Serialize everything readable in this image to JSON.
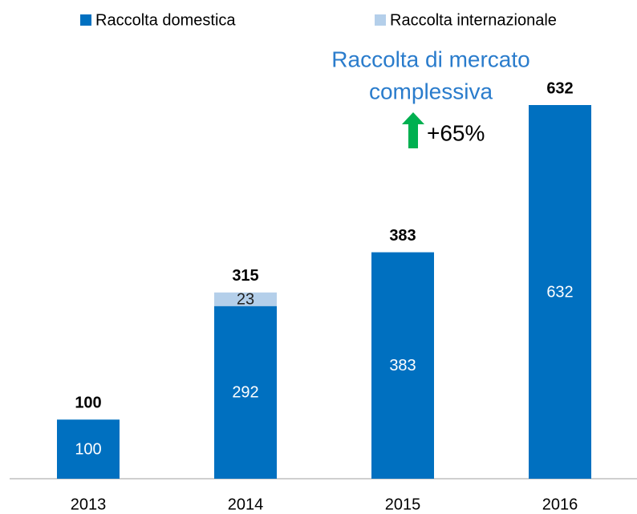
{
  "chart_data": {
    "type": "stacked_bar",
    "categories": [
      "2013",
      "2014",
      "2015",
      "2016"
    ],
    "series": [
      {
        "name": "Raccolta domestica",
        "color": "#0070c0",
        "values": [
          100,
          292,
          383,
          632
        ]
      },
      {
        "name": "Raccolta internazionale",
        "color": "#b4cfea",
        "values": [
          null,
          23,
          null,
          null
        ]
      }
    ],
    "totals": [
      100,
      315,
      383,
      632
    ],
    "annotation": {
      "lines": [
        "Raccolta di mercato",
        "complessiva"
      ],
      "change": "+65%"
    }
  }
}
